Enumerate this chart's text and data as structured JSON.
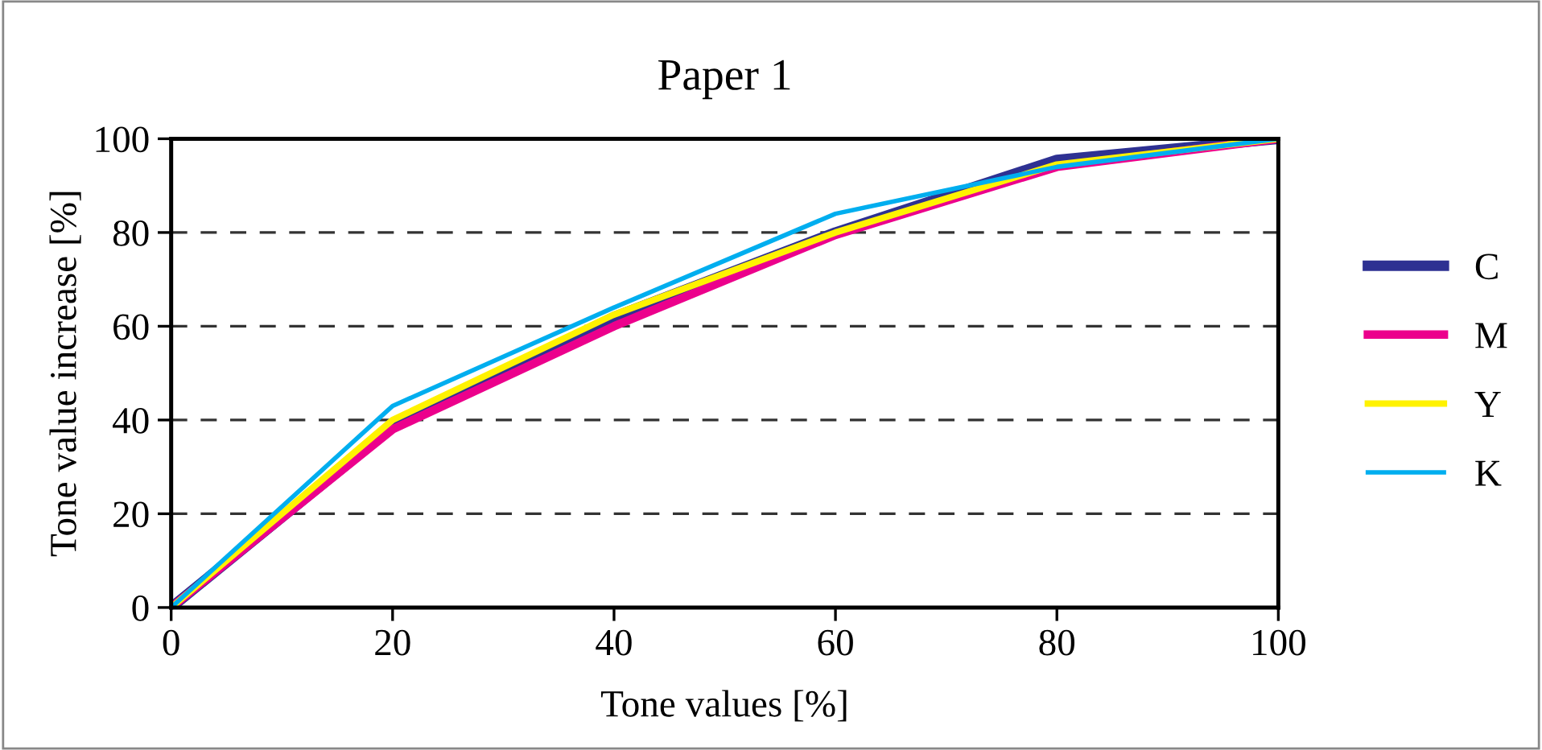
{
  "chart_data": {
    "type": "line",
    "title": "Paper 1",
    "xlabel": "Tone values [%]",
    "ylabel": "Tone value increase [%]",
    "x": [
      0,
      20,
      40,
      60,
      80,
      100
    ],
    "series": [
      {
        "name": "C",
        "color": "#2e3192",
        "values": [
          0,
          38.5,
          62,
          80,
          95.5,
          100
        ]
      },
      {
        "name": "M",
        "color": "#ec008c",
        "values": [
          0,
          38,
          60,
          79.5,
          94,
          100
        ]
      },
      {
        "name": "Y",
        "color": "#fff200",
        "values": [
          0,
          40,
          62.5,
          80,
          94.5,
          100
        ]
      },
      {
        "name": "K",
        "color": "#00aeef",
        "values": [
          0,
          43,
          64,
          84,
          94,
          100
        ]
      }
    ],
    "xlim": [
      0,
      100
    ],
    "ylim": [
      0,
      100
    ],
    "xticks": [
      0,
      20,
      40,
      60,
      80,
      100
    ],
    "yticks": [
      0,
      20,
      40,
      60,
      80,
      100
    ],
    "grid": "y",
    "legend": "right",
    "marker": "none",
    "line_style": "solid"
  }
}
